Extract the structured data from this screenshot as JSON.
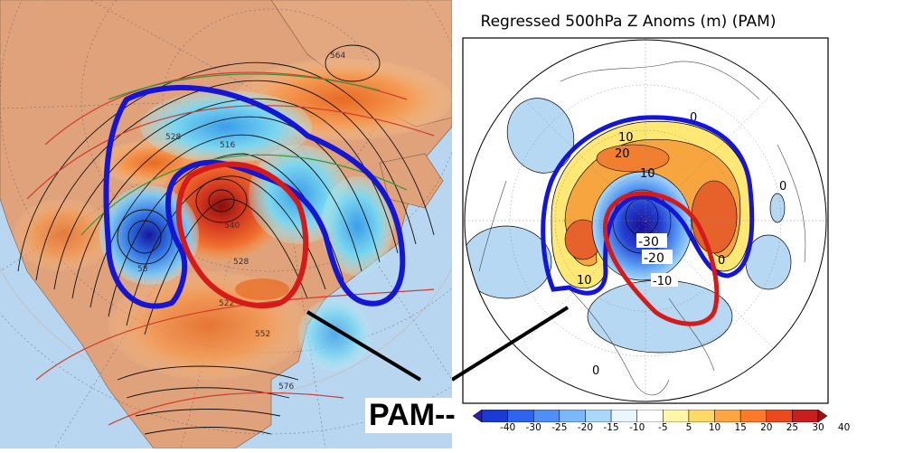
{
  "right_panel": {
    "title": "Regressed 500hPa Z Anoms (m) (PAM)"
  },
  "pam_label": "PAM--",
  "colorbar": {
    "ticks": [
      "-40",
      "-30",
      "-25",
      "-20",
      "-15",
      "-10",
      "-5",
      "5",
      "10",
      "15",
      "20",
      "25",
      "30",
      "40"
    ],
    "colors": [
      "#2a1db0",
      "#1a3ad6",
      "#2d64f0",
      "#4f8ff8",
      "#7ab8fb",
      "#a9d8fb",
      "#e8f6ff",
      "#ffffff",
      "#fff6a8",
      "#ffd866",
      "#ffa640",
      "#ff7a28",
      "#ec4a1e",
      "#c81e1e",
      "#a01010"
    ]
  },
  "right_map_labels": {
    "contour_labels": [
      "10",
      "20",
      "10",
      "-30",
      "-20",
      "-10",
      "10",
      "0",
      "0",
      "0",
      "0"
    ]
  },
  "left_map_labels": {
    "height_labels": [
      "564",
      "528",
      "516",
      "540",
      "528",
      "552",
      "576",
      "522",
      "58"
    ]
  },
  "colors": {
    "blue_outline": "#1515d6",
    "red_outline": "#d61a1a",
    "ocean": "#b9d6f0",
    "land": "#e0a37c"
  }
}
